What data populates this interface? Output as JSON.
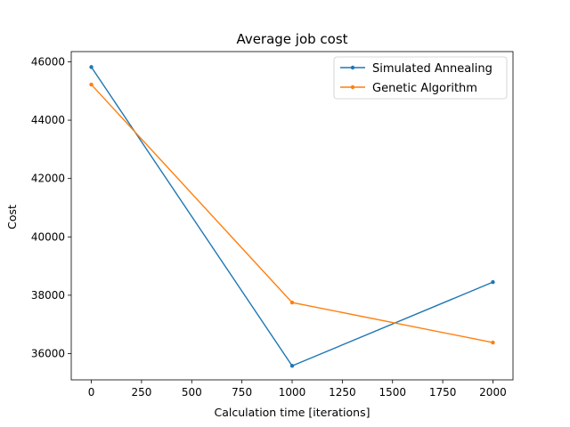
{
  "chart_data": {
    "type": "line",
    "title": "Average job cost",
    "xlabel": "Calculation time [iterations]",
    "ylabel": "Cost",
    "xlim": [
      -100,
      2100
    ],
    "ylim": [
      35100,
      46350
    ],
    "xticks": [
      0,
      250,
      500,
      750,
      1000,
      1250,
      1500,
      1750,
      2000
    ],
    "yticks": [
      36000,
      38000,
      40000,
      42000,
      44000,
      46000
    ],
    "grid": false,
    "legend_position": "top-right",
    "series": [
      {
        "name": "Simulated Annealing",
        "color": "#1f77b4",
        "x": [
          0,
          1000,
          2000
        ],
        "y": [
          45820,
          35580,
          38450
        ]
      },
      {
        "name": "Genetic Algorithm",
        "color": "#ff7f0e",
        "x": [
          0,
          1000,
          2000
        ],
        "y": [
          45220,
          37750,
          36380
        ]
      }
    ]
  }
}
